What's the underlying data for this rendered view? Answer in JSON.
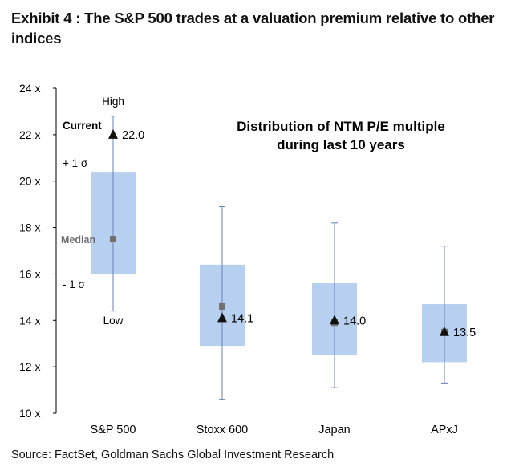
{
  "exhibit_title": "Exhibit 4 : The S&P 500 trades at a valuation premium relative to other indices",
  "source": "Source: FactSet, Goldman Sachs Global Investment Research",
  "chart_data": {
    "type": "box",
    "title": "Distribution of NTM P/E multiple during last 10 years",
    "title_lines": [
      "Distribution of NTM P/E multiple",
      "during last 10 years"
    ],
    "ylim": [
      10,
      24
    ],
    "y_ticks": [
      10,
      12,
      14,
      16,
      18,
      20,
      22,
      24
    ],
    "y_tick_suffix": " x",
    "grid": false,
    "categories": [
      "S&P 500",
      "Stoxx 600",
      "Japan",
      "APxJ"
    ],
    "series": [
      {
        "category": "S&P 500",
        "low": 14.4,
        "minus_1sd": 16.0,
        "median": 17.5,
        "plus_1sd": 20.4,
        "high": 22.8,
        "current": 22.0,
        "current_label": "22.0"
      },
      {
        "category": "Stoxx 600",
        "low": 10.6,
        "minus_1sd": 12.9,
        "median": 14.6,
        "plus_1sd": 16.4,
        "high": 18.9,
        "current": 14.1,
        "current_label": "14.1"
      },
      {
        "category": "Japan",
        "low": 11.1,
        "minus_1sd": 12.5,
        "median": 13.9,
        "plus_1sd": 15.6,
        "high": 18.2,
        "current": 14.0,
        "current_label": "14.0"
      },
      {
        "category": "APxJ",
        "low": 11.3,
        "minus_1sd": 12.2,
        "median": 13.5,
        "plus_1sd": 14.7,
        "high": 17.2,
        "current": 13.5,
        "current_label": "13.5"
      }
    ],
    "annotations": {
      "high": "High",
      "current": "Current",
      "plus_1sd": "+ 1 σ",
      "median": "Median",
      "minus_1sd": "- 1 σ",
      "low": "Low"
    },
    "colors": {
      "box": "#b8d0ef",
      "whisker": "#6a7fb4",
      "median": "#707070",
      "current": "#111111"
    }
  }
}
